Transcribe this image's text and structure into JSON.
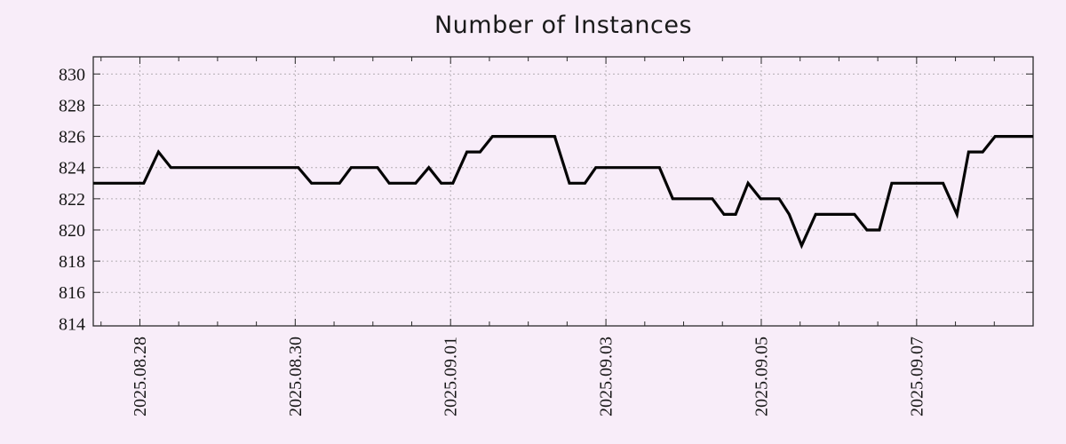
{
  "colors": {
    "background": "#f8edf9",
    "grid": "#b4aeb4",
    "axis": "#2b2b2b",
    "line": "#050505",
    "tick_text": "#161616",
    "title_text": "#1a1a1a"
  },
  "chart_data": {
    "type": "line",
    "title": "Number of Instances",
    "xlabel": "",
    "ylabel": "",
    "grid": true,
    "legend": "none",
    "x": {
      "unit": "days relative to 2025.08.28 00:00",
      "range": [
        -0.6,
        11.5
      ],
      "major_ticks": [
        {
          "day": 0,
          "label": "2025.08.28"
        },
        {
          "day": 2,
          "label": "2025.08.30"
        },
        {
          "day": 4,
          "label": "2025.09.01"
        },
        {
          "day": 6,
          "label": "2025.09.03"
        },
        {
          "day": 8,
          "label": "2025.09.05"
        },
        {
          "day": 10,
          "label": "2025.09.07"
        }
      ],
      "minor_tick_interval": 0.5
    },
    "y": {
      "range": [
        813.85,
        831.1
      ],
      "ticks": [
        814,
        816,
        818,
        820,
        822,
        824,
        826,
        828,
        830
      ]
    },
    "series": [
      {
        "name": "instances",
        "color": "#050505",
        "line_width": 3.2,
        "points": [
          [
            -0.6,
            823
          ],
          [
            0.05,
            823
          ],
          [
            0.24,
            825
          ],
          [
            0.4,
            824
          ],
          [
            2.04,
            824
          ],
          [
            2.21,
            823
          ],
          [
            2.57,
            823
          ],
          [
            2.72,
            824
          ],
          [
            3.06,
            824
          ],
          [
            3.21,
            823
          ],
          [
            3.55,
            823
          ],
          [
            3.72,
            824
          ],
          [
            3.88,
            823
          ],
          [
            4.03,
            823
          ],
          [
            4.21,
            825
          ],
          [
            4.38,
            825
          ],
          [
            4.54,
            826
          ],
          [
            5.34,
            826
          ],
          [
            5.53,
            823
          ],
          [
            5.73,
            823
          ],
          [
            5.87,
            824
          ],
          [
            6.69,
            824
          ],
          [
            6.86,
            822
          ],
          [
            7.37,
            822
          ],
          [
            7.52,
            821
          ],
          [
            7.67,
            821
          ],
          [
            7.83,
            823
          ],
          [
            7.99,
            822
          ],
          [
            8.23,
            822
          ],
          [
            8.36,
            821
          ],
          [
            8.52,
            819
          ],
          [
            8.7,
            821
          ],
          [
            9.2,
            821
          ],
          [
            9.36,
            820
          ],
          [
            9.52,
            820
          ],
          [
            9.68,
            823
          ],
          [
            10.34,
            823
          ],
          [
            10.52,
            821
          ],
          [
            10.67,
            825
          ],
          [
            10.85,
            825
          ],
          [
            11.01,
            826
          ],
          [
            11.5,
            826
          ]
        ]
      }
    ]
  }
}
